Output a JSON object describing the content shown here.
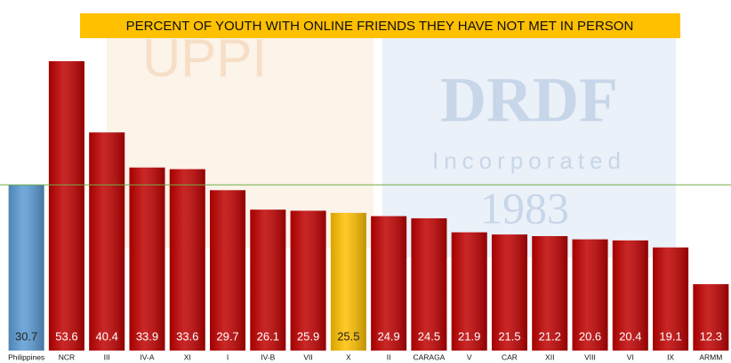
{
  "chart_data": {
    "type": "bar",
    "title": "PERCENT OF YOUTH WITH ONLINE FRIENDS THEY HAVE NOT MET IN PERSON",
    "watermark": [
      "UPPI",
      "DRDF",
      "Incorporated",
      "1983"
    ],
    "categories": [
      "Philippines",
      "NCR",
      "III",
      "IV-A",
      "XI",
      "I",
      "IV-B",
      "VII",
      "X",
      "II",
      "CARAGA",
      "V",
      "CAR",
      "XII",
      "VIII",
      "VI",
      "IX",
      "ARMM"
    ],
    "values": [
      30.7,
      53.6,
      40.4,
      33.9,
      33.6,
      29.7,
      26.1,
      25.9,
      25.5,
      24.9,
      24.5,
      21.9,
      21.5,
      21.2,
      20.6,
      20.4,
      19.1,
      12.3
    ],
    "colors": [
      "#5b9bd5",
      "#c00000",
      "#c00000",
      "#c00000",
      "#c00000",
      "#c00000",
      "#c00000",
      "#c00000",
      "#ffc000",
      "#c00000",
      "#c00000",
      "#c00000",
      "#c00000",
      "#c00000",
      "#c00000",
      "#c00000",
      "#c00000",
      "#c00000"
    ],
    "text_colors": [
      "#222222",
      "#ffffff",
      "#ffffff",
      "#ffffff",
      "#ffffff",
      "#ffffff",
      "#ffffff",
      "#ffffff",
      "#222222",
      "#ffffff",
      "#ffffff",
      "#ffffff",
      "#ffffff",
      "#ffffff",
      "#ffffff",
      "#ffffff",
      "#ffffff",
      "#ffffff"
    ],
    "reference_line": {
      "value": 30.7,
      "color": "#70ad47"
    },
    "ylim": [
      0,
      60
    ]
  }
}
